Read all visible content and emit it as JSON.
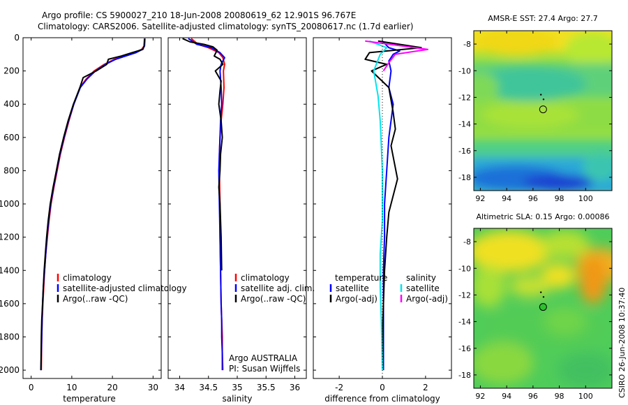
{
  "header": {
    "line1": "Argo profile: CS 5900027_210 18-Jun-2008 20080619_62 12.901S 96.767E",
    "line2": "Climatology: CARS2006. Satellite-adjusted climatology: synTS_20080617.nc (1.7d earlier)"
  },
  "footer": {
    "credit": "CSIRO 26-Jun-2008 10:37:40"
  },
  "colors": {
    "red": "#ff0000",
    "blue": "#0000ff",
    "black": "#000000",
    "cyan": "#00e5ee",
    "magenta": "#ff00ff"
  },
  "chart_data": [
    {
      "type": "line",
      "id": "temperature",
      "xlabel": "temperature",
      "ylabel": "",
      "xlim": [
        -2,
        32
      ],
      "ylim": [
        2050,
        0
      ],
      "xticks": [
        0,
        10,
        20,
        30
      ],
      "yticks": [
        0,
        200,
        400,
        600,
        800,
        1000,
        1200,
        1400,
        1600,
        1800,
        2000
      ],
      "legend": [
        "climatology",
        "satellite-adjusted climatology",
        "Argo(..raw -QC)"
      ],
      "series": [
        {
          "name": "climatology",
          "color": "red",
          "x": [
            28.0,
            27.8,
            27.2,
            25.5,
            23.0,
            20.5,
            18.0,
            15.5,
            13.5,
            12.0,
            10.5,
            9.3,
            8.2,
            7.2,
            6.4,
            5.6,
            4.9,
            4.4,
            4.0,
            3.6,
            3.3,
            3.1,
            2.9,
            2.7,
            2.6,
            2.5
          ],
          "y": [
            5,
            50,
            70,
            90,
            110,
            130,
            160,
            200,
            250,
            300,
            400,
            500,
            600,
            700,
            800,
            900,
            1000,
            1100,
            1200,
            1300,
            1400,
            1500,
            1600,
            1700,
            1800,
            2000
          ]
        },
        {
          "name": "satellite-adjusted climatology",
          "color": "blue",
          "x": [
            28.0,
            27.9,
            27.4,
            25.8,
            23.3,
            20.8,
            18.3,
            15.8,
            13.7,
            12.1,
            10.5,
            9.2,
            8.1,
            7.1,
            6.3,
            5.5,
            4.8,
            4.3,
            3.9,
            3.6,
            3.3,
            3.0,
            2.8,
            2.7,
            2.6,
            2.4
          ],
          "y": [
            5,
            50,
            70,
            90,
            110,
            130,
            160,
            200,
            250,
            300,
            400,
            500,
            600,
            700,
            800,
            900,
            1000,
            1100,
            1200,
            1300,
            1400,
            1500,
            1600,
            1700,
            1800,
            2000
          ]
        },
        {
          "name": "Argo(..raw -QC)",
          "color": "black",
          "x": [
            27.9,
            27.8,
            27.5,
            24.8,
            22.2,
            19.0,
            18.6,
            16.0,
            12.8,
            12.0,
            10.4,
            9.1,
            8.0,
            7.0,
            6.2,
            5.4,
            4.7,
            4.2,
            3.8,
            3.5,
            3.2,
            3.0,
            2.8,
            2.6,
            2.5,
            2.4
          ],
          "y": [
            5,
            50,
            70,
            90,
            110,
            130,
            160,
            200,
            240,
            300,
            400,
            500,
            600,
            700,
            800,
            900,
            1000,
            1100,
            1200,
            1300,
            1400,
            1500,
            1600,
            1700,
            1800,
            2000
          ]
        }
      ]
    },
    {
      "type": "line",
      "id": "salinity",
      "xlabel": "salinity",
      "xlim": [
        33.8,
        36.2
      ],
      "ylim": [
        2050,
        0
      ],
      "xticks": [
        34,
        34.5,
        35,
        35.5,
        36
      ],
      "xticklabels": [
        "34",
        "34.5",
        "35",
        "35.5",
        "36"
      ],
      "legend": [
        "climatology",
        "satellite adj. clim.",
        "Argo(..raw -QC)"
      ],
      "annotation": [
        "Argo AUSTRALIA",
        "PI: Susan Wijffels"
      ],
      "series": [
        {
          "name": "climatology",
          "color": "red",
          "x": [
            34.2,
            34.32,
            34.5,
            34.68,
            34.75,
            34.78,
            34.76,
            34.77,
            34.75,
            34.72,
            34.7,
            34.69,
            34.69,
            34.7,
            34.7,
            34.71,
            34.72,
            34.73,
            34.74,
            34.74,
            34.75
          ],
          "y": [
            5,
            40,
            60,
            90,
            120,
            160,
            200,
            300,
            400,
            500,
            600,
            700,
            800,
            1000,
            1200,
            1400,
            1600,
            1700,
            1800,
            1900,
            2000
          ]
        },
        {
          "name": "satellite adj. clim.",
          "color": "blue",
          "x": [
            34.15,
            34.3,
            34.55,
            34.7,
            34.78,
            34.72,
            34.7,
            34.72,
            34.73,
            34.71,
            34.7,
            34.69,
            34.68,
            34.69,
            34.7,
            34.71,
            34.72,
            34.73,
            34.73,
            34.74,
            34.74
          ],
          "y": [
            5,
            40,
            60,
            90,
            120,
            160,
            200,
            300,
            400,
            500,
            600,
            700,
            800,
            1000,
            1200,
            1400,
            1600,
            1700,
            1800,
            1900,
            2000
          ]
        },
        {
          "name": "Argo(..raw -QC)",
          "color": "black",
          "x": [
            34.05,
            34.18,
            34.42,
            34.58,
            34.65,
            34.6,
            34.7,
            34.75,
            34.62,
            34.72,
            34.7,
            34.68,
            34.72,
            34.74,
            34.71,
            34.7,
            34.68,
            34.7,
            34.71,
            34.72,
            34.73
          ],
          "y": [
            5,
            25,
            40,
            55,
            75,
            110,
            130,
            160,
            200,
            260,
            320,
            400,
            500,
            600,
            700,
            800,
            900,
            1000,
            1100,
            1200,
            1400
          ]
        }
      ]
    },
    {
      "type": "line",
      "id": "difference",
      "xlabel": "difference from climatology",
      "xlim": [
        -3.2,
        3.2
      ],
      "ylim": [
        2050,
        0
      ],
      "xticks": [
        -2,
        0,
        2
      ],
      "legend_temperature": [
        "temperature",
        "satellite",
        "Argo(-adj)"
      ],
      "legend_salinity": [
        "salinity",
        "satellite",
        "Argo(-adj)"
      ],
      "series": [
        {
          "name": "temperature satellite",
          "color": "blue",
          "x": [
            0,
            0.3,
            0.8,
            0.5,
            0.3,
            0.4,
            0.3,
            0.5,
            0.4,
            0.3,
            0.2,
            0.1,
            0.1,
            0.05,
            0.05,
            0.05,
            0.05,
            0.05
          ],
          "y": [
            20,
            60,
            80,
            100,
            140,
            200,
            300,
            400,
            500,
            600,
            800,
            1000,
            1200,
            1400,
            1600,
            1800,
            1900,
            2000
          ]
        },
        {
          "name": "temperature Argo",
          "color": "black",
          "x": [
            -0.2,
            1.8,
            -0.6,
            -0.8,
            0.2,
            -0.5,
            0.3,
            0.5,
            0.6,
            0.4,
            0.7,
            0.5,
            0.3,
            0.2,
            0.1,
            0.05,
            0.0,
            0.0
          ],
          "y": [
            20,
            60,
            90,
            130,
            160,
            200,
            300,
            450,
            550,
            650,
            850,
            950,
            1050,
            1200,
            1400,
            1600,
            1800,
            2000
          ]
        },
        {
          "name": "salinity satellite",
          "color": "cyan",
          "x": [
            -0.6,
            0.2,
            -0.1,
            -0.4,
            -0.2,
            -0.1,
            0.0,
            0.0,
            -0.1,
            -0.1,
            -0.05,
            0.0
          ],
          "y": [
            20,
            60,
            100,
            200,
            350,
            500,
            800,
            1100,
            1300,
            1500,
            1700,
            2000
          ]
        },
        {
          "name": "salinity Argo",
          "color": "magenta",
          "x": [
            -0.8,
            2.1,
            0.6,
            0.3,
            0.05
          ],
          "y": [
            20,
            70,
            100,
            150,
            200
          ]
        }
      ]
    },
    {
      "type": "heatmap",
      "id": "sst-map",
      "title": "AMSR-E SST: 27.4 Argo: 27.7",
      "xlim": [
        91.5,
        102
      ],
      "ylim": [
        -19,
        -7
      ],
      "xticks": [
        92,
        94,
        96,
        98,
        100
      ],
      "yticks": [
        -8,
        -10,
        -12,
        -14,
        -16,
        -18
      ],
      "marker": {
        "lon": 96.767,
        "lat": -12.901,
        "fill": "none"
      },
      "track": [
        {
          "lon": 96.8,
          "lat": -12.15
        },
        {
          "lon": 96.6,
          "lat": -11.8
        }
      ]
    },
    {
      "type": "heatmap",
      "id": "sla-map",
      "title": "Altimetric SLA: 0.15 Argo: 0.00086",
      "xlim": [
        91.5,
        102
      ],
      "ylim": [
        -19,
        -7
      ],
      "xticks": [
        92,
        94,
        96,
        98,
        100
      ],
      "yticks": [
        -8,
        -10,
        -12,
        -14,
        -16,
        -18
      ],
      "marker": {
        "lon": 96.767,
        "lat": -12.901,
        "fill": "green"
      },
      "track": [
        {
          "lon": 96.8,
          "lat": -12.15
        },
        {
          "lon": 96.6,
          "lat": -11.8
        }
      ]
    }
  ]
}
